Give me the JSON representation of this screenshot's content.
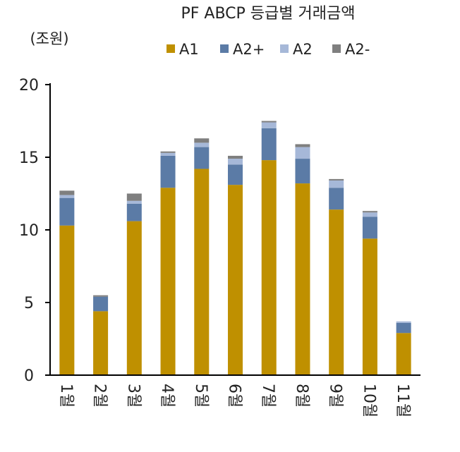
{
  "chart_data": {
    "type": "bar",
    "stacked": true,
    "title": "PF ABCP 등급별 거래금액",
    "unit_label": "(조원)",
    "xlabel": "",
    "ylabel": "",
    "ylim": [
      0,
      20
    ],
    "yticks": [
      "0",
      "5",
      "10",
      "15",
      "20"
    ],
    "grid": false,
    "legend_position": "top-right",
    "categories": [
      "1월",
      "2월",
      "3월",
      "4월",
      "5월",
      "6월",
      "7월",
      "8월",
      "9월",
      "10월",
      "11월"
    ],
    "series": [
      {
        "name": "A1",
        "color": "#BF9000",
        "values": [
          10.3,
          4.4,
          10.6,
          12.9,
          14.2,
          13.1,
          14.8,
          13.2,
          11.4,
          9.4,
          2.9
        ]
      },
      {
        "name": "A2+",
        "color": "#5B7BA6",
        "values": [
          1.9,
          1.0,
          1.2,
          2.2,
          1.5,
          1.4,
          2.2,
          1.7,
          1.5,
          1.5,
          0.7
        ]
      },
      {
        "name": "A2",
        "color": "#A6B8D8",
        "values": [
          0.2,
          0.0,
          0.2,
          0.2,
          0.3,
          0.4,
          0.4,
          0.8,
          0.5,
          0.3,
          0.1
        ]
      },
      {
        "name": "A2-",
        "color": "#7F7F7F",
        "values": [
          0.3,
          0.1,
          0.5,
          0.1,
          0.3,
          0.2,
          0.1,
          0.2,
          0.1,
          0.1,
          0.0
        ]
      }
    ]
  }
}
